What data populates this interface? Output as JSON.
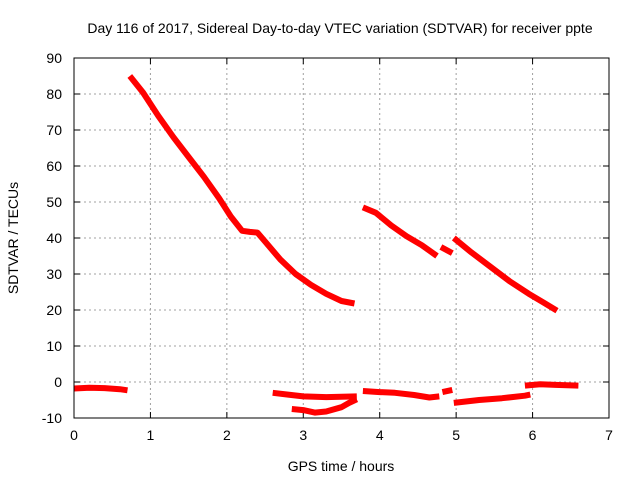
{
  "chart_data": {
    "type": "line",
    "title": "Day 116 of 2017, Sidereal Day-to-day VTEC variation (SDTVAR) for receiver ppte",
    "xlabel": "GPS time / hours",
    "ylabel": "SDTVAR / TECUs",
    "xlim": [
      0,
      7
    ],
    "ylim": [
      -10,
      90
    ],
    "xticks": [
      "0",
      "1",
      "2",
      "3",
      "4",
      "5",
      "6",
      "7"
    ],
    "yticks": [
      "-10",
      "0",
      "10",
      "20",
      "30",
      "40",
      "50",
      "60",
      "70",
      "80",
      "90"
    ],
    "grid": true,
    "color": "#ff0000",
    "series": [
      {
        "points": [
          [
            0.0,
            -1.8
          ],
          [
            0.2,
            -1.6
          ],
          [
            0.4,
            -1.7
          ],
          [
            0.6,
            -2.0
          ],
          [
            0.7,
            -2.3
          ]
        ]
      },
      {
        "points": [
          [
            0.73,
            85
          ],
          [
            0.9,
            80.5
          ],
          [
            1.1,
            74
          ],
          [
            1.3,
            68
          ],
          [
            1.5,
            62.5
          ],
          [
            1.7,
            57
          ],
          [
            1.9,
            51
          ],
          [
            2.05,
            46
          ],
          [
            2.2,
            42
          ],
          [
            2.3,
            41.7
          ],
          [
            2.4,
            41.5
          ],
          [
            2.5,
            39
          ],
          [
            2.7,
            34
          ],
          [
            2.9,
            30
          ],
          [
            3.1,
            27
          ],
          [
            3.3,
            24.5
          ],
          [
            3.5,
            22.5
          ],
          [
            3.67,
            21.8
          ]
        ]
      },
      {
        "points": [
          [
            2.6,
            -3.0
          ],
          [
            2.8,
            -3.5
          ],
          [
            3.0,
            -4.0
          ],
          [
            3.3,
            -4.2
          ],
          [
            3.7,
            -4.0
          ]
        ]
      },
      {
        "points": [
          [
            2.85,
            -7.5
          ],
          [
            3.0,
            -7.8
          ],
          [
            3.15,
            -8.5
          ],
          [
            3.3,
            -8.2
          ],
          [
            3.5,
            -7.0
          ],
          [
            3.6,
            -5.8
          ],
          [
            3.7,
            -4.8
          ]
        ]
      },
      {
        "points": [
          [
            3.78,
            48.5
          ],
          [
            3.95,
            47
          ],
          [
            4.15,
            43.5
          ],
          [
            4.35,
            40.5
          ],
          [
            4.55,
            38
          ],
          [
            4.75,
            35
          ]
        ]
      },
      {
        "points": [
          [
            3.78,
            -2.5
          ],
          [
            4.0,
            -2.8
          ],
          [
            4.2,
            -3.0
          ],
          [
            4.45,
            -3.6
          ],
          [
            4.65,
            -4.3
          ],
          [
            4.78,
            -4.0
          ]
        ]
      },
      {
        "points": [
          [
            4.8,
            37.5
          ],
          [
            4.95,
            35.8
          ]
        ]
      },
      {
        "points": [
          [
            4.82,
            -2.8
          ],
          [
            4.95,
            -2.2
          ]
        ]
      },
      {
        "points": [
          [
            4.97,
            40
          ],
          [
            5.2,
            36
          ],
          [
            5.45,
            32
          ],
          [
            5.7,
            28
          ],
          [
            5.95,
            24.5
          ],
          [
            6.15,
            22
          ],
          [
            6.32,
            19.8
          ]
        ]
      },
      {
        "points": [
          [
            4.97,
            -5.8
          ],
          [
            5.3,
            -5.0
          ],
          [
            5.6,
            -4.5
          ],
          [
            5.9,
            -3.8
          ],
          [
            5.97,
            -3.5
          ]
        ]
      },
      {
        "points": [
          [
            5.9,
            -1.0
          ],
          [
            6.1,
            -0.6
          ],
          [
            6.3,
            -0.8
          ],
          [
            6.45,
            -0.9
          ],
          [
            6.6,
            -1.0
          ]
        ]
      }
    ]
  }
}
